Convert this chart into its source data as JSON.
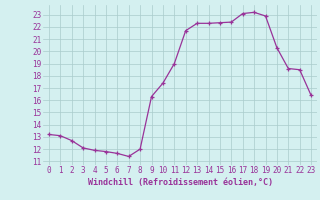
{
  "x": [
    0,
    1,
    2,
    3,
    4,
    5,
    6,
    7,
    8,
    9,
    10,
    11,
    12,
    13,
    14,
    15,
    16,
    17,
    18,
    19,
    20,
    21,
    22,
    23
  ],
  "y": [
    13.2,
    13.1,
    12.7,
    12.1,
    11.9,
    11.8,
    11.65,
    11.4,
    12.0,
    16.3,
    17.4,
    19.0,
    21.7,
    22.3,
    22.3,
    22.35,
    22.4,
    23.1,
    23.2,
    22.9,
    20.3,
    18.6,
    18.5,
    16.4
  ],
  "line_color": "#993399",
  "marker": "+",
  "markersize": 3.5,
  "linewidth": 0.9,
  "bg_color": "#d4f0f0",
  "grid_color": "#aacccc",
  "xlabel": "Windchill (Refroidissement éolien,°C)",
  "xlabel_fontsize": 6.0,
  "xlabel_color": "#993399",
  "ytick_labels": [
    "11",
    "12",
    "13",
    "14",
    "15",
    "16",
    "17",
    "18",
    "19",
    "20",
    "21",
    "22",
    "23"
  ],
  "ytick_values": [
    11,
    12,
    13,
    14,
    15,
    16,
    17,
    18,
    19,
    20,
    21,
    22,
    23
  ],
  "ylim": [
    10.7,
    23.8
  ],
  "xlim": [
    -0.5,
    23.5
  ],
  "tick_fontsize": 5.5,
  "tick_color": "#993399"
}
